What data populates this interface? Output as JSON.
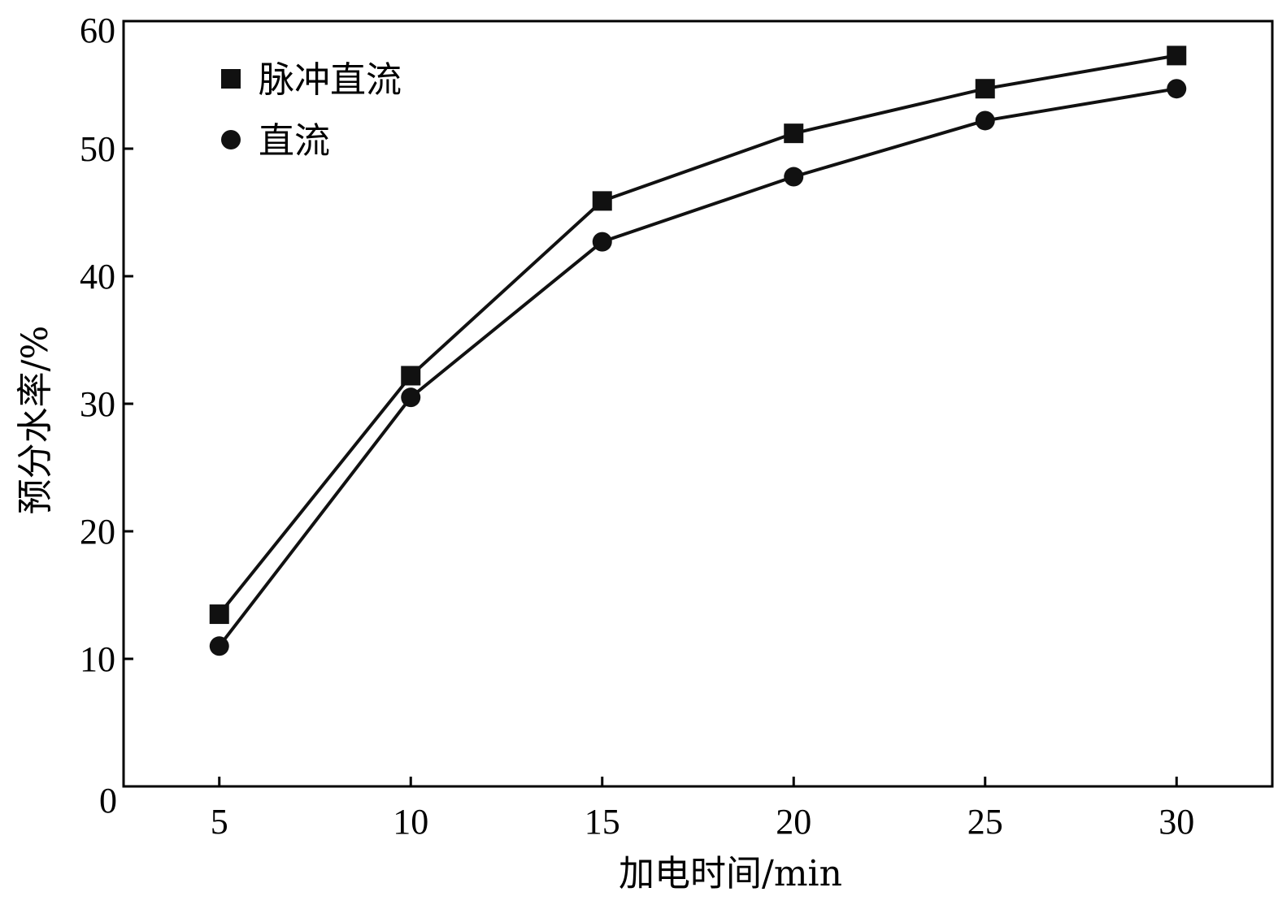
{
  "chart_data": {
    "type": "line",
    "xlabel": "加电时间/min",
    "ylabel": "预分水率/%",
    "x": [
      5,
      10,
      15,
      20,
      25,
      30
    ],
    "xlim": [
      2.5,
      32.5
    ],
    "ylim": [
      0,
      60
    ],
    "x_ticks": [
      "5",
      "10",
      "15",
      "20",
      "25",
      "30"
    ],
    "y_ticks": [
      "0",
      "10",
      "20",
      "30",
      "40",
      "50",
      "60"
    ],
    "grid": false,
    "legend_position": "top-left",
    "series": [
      {
        "name": "脉冲直流",
        "marker": "square",
        "color": "#111111",
        "values": [
          13.5,
          32.2,
          45.9,
          51.2,
          54.7,
          57.3
        ]
      },
      {
        "name": "直流",
        "marker": "circle",
        "color": "#111111",
        "values": [
          11.0,
          30.5,
          42.7,
          47.8,
          52.2,
          54.7
        ]
      }
    ]
  }
}
